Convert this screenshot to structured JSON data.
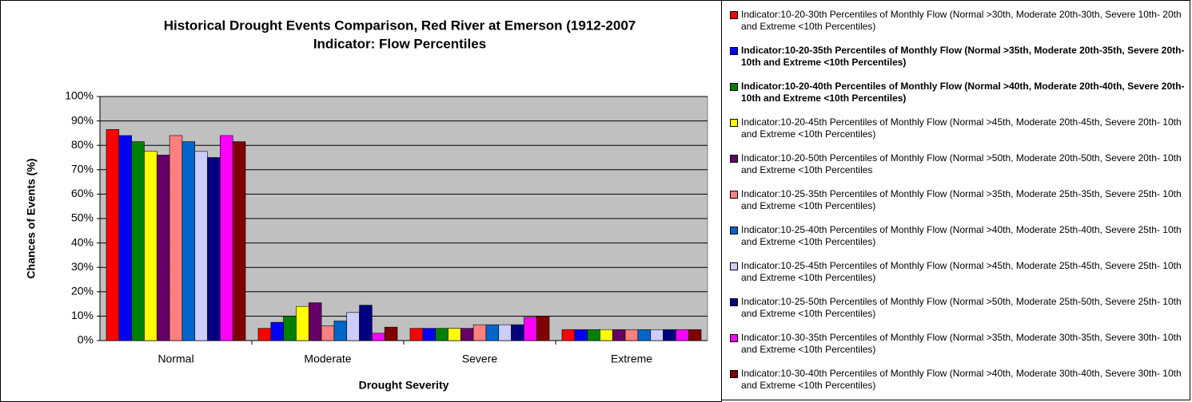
{
  "chart_data": {
    "type": "bar",
    "title": "Historical Drought Events Comparison, Red River at Emerson (1912-2007",
    "subtitle": "Indicator: Flow Percentiles",
    "x_label": "Drought Severity",
    "y_label": "Chances of Events (%)",
    "categories": [
      "Normal",
      "Moderate",
      "Severe",
      "Extreme"
    ],
    "ylim": [
      0,
      100
    ],
    "yticks": [
      {
        "value": 0,
        "label": "0%"
      },
      {
        "value": 10,
        "label": "10%"
      },
      {
        "value": 20,
        "label": "20%"
      },
      {
        "value": 30,
        "label": "30%"
      },
      {
        "value": 40,
        "label": "40%"
      },
      {
        "value": 50,
        "label": "50%"
      },
      {
        "value": 60,
        "label": "60%"
      },
      {
        "value": 70,
        "label": "70%"
      },
      {
        "value": 80,
        "label": "80%"
      },
      {
        "value": 90,
        "label": "90%"
      },
      {
        "value": 100,
        "label": "100%"
      }
    ],
    "grid": true,
    "legend": "right",
    "series": [
      {
        "name": "Indicator:10-20-30th Percentiles of Monthly Flow (Normal >30th, Moderate 20th-30th, Severe 10th- 20th and Extreme <10th Percentiles)",
        "color": "#ff0000",
        "values": [
          86.5,
          5,
          5,
          4.5
        ]
      },
      {
        "name": "Indicator:10-20-35th Percentiles of Monthly Flow (Normal >35th, Moderate 20th-35th, Severe 20th- 10th and Extreme <10th Percentiles)",
        "color": "#0000ff",
        "values": [
          84,
          7.5,
          5,
          4.5
        ]
      },
      {
        "name": "Indicator:10-20-40th Percentiles of Monthly Flow (Normal >40th, Moderate 20th-40th, Severe 20th- 10th and Extreme <10th Percentiles)",
        "color": "#008000",
        "values": [
          81.5,
          10,
          5,
          4.5
        ]
      },
      {
        "name": "Indicator:10-20-45th Percentiles of Monthly Flow (Normal >45th, Moderate 20th-45th, Severe 20th- 10th and Extreme <10th Percentiles)",
        "color": "#ffff00",
        "values": [
          77.5,
          14,
          5,
          4.5
        ]
      },
      {
        "name": "Indicator:10-20-50th Percentiles of Monthly Flow (Normal >50th, Moderate 20th-50th, Severe 20th- 10th and Extreme <10th Percentiles",
        "color": "#660066",
        "values": [
          76,
          15.5,
          5,
          4.5
        ]
      },
      {
        "name": "Indicator:10-25-35th Percentiles of Monthly Flow (Normal >35th, Moderate 25th-35th, Severe 25th- 10th and Extreme <10th Percentiles)",
        "color": "#ff8080",
        "values": [
          84,
          6,
          6.5,
          4.5
        ]
      },
      {
        "name": "Indicator:10-25-40th Percentiles of Monthly Flow (Normal >40th, Moderate 25th-40th, Severe 25th- 10th and Extreme <10th Percentiles)",
        "color": "#0066cc",
        "values": [
          81.5,
          8,
          6.5,
          4.5
        ]
      },
      {
        "name": "Indicator:10-25-45th Percentiles of Monthly Flow (Normal >45th, Moderate 25th-45th, Severe 25th- 10th and Extreme <10th Percentiles)",
        "color": "#ccccff",
        "values": [
          77.5,
          11.5,
          6.5,
          4.5
        ]
      },
      {
        "name": "Indicator:10-25-50th Percentiles of Monthly Flow (Normal >50th, Moderate 25th-50th, Severe 25th- 10th and Extreme <10th Percentiles)",
        "color": "#000080",
        "values": [
          75,
          14.5,
          6.5,
          4.5
        ]
      },
      {
        "name": "Indicator:10-30-35th Percentiles of Monthly Flow (Normal >35th, Moderate 30th-35th, Severe 30th- 10th and Extreme <10th Percentiles)",
        "color": "#ff00ff",
        "values": [
          84,
          3,
          9.5,
          4.5
        ]
      },
      {
        "name": "Indicator:10-30-40th Percentiles of Monthly Flow (Normal >40th, Moderate 30th-40th, Severe 30th- 10th and Extreme <10th Percentiles)",
        "color": "#800000",
        "values": [
          81.5,
          5.5,
          10,
          4.5
        ]
      }
    ]
  }
}
